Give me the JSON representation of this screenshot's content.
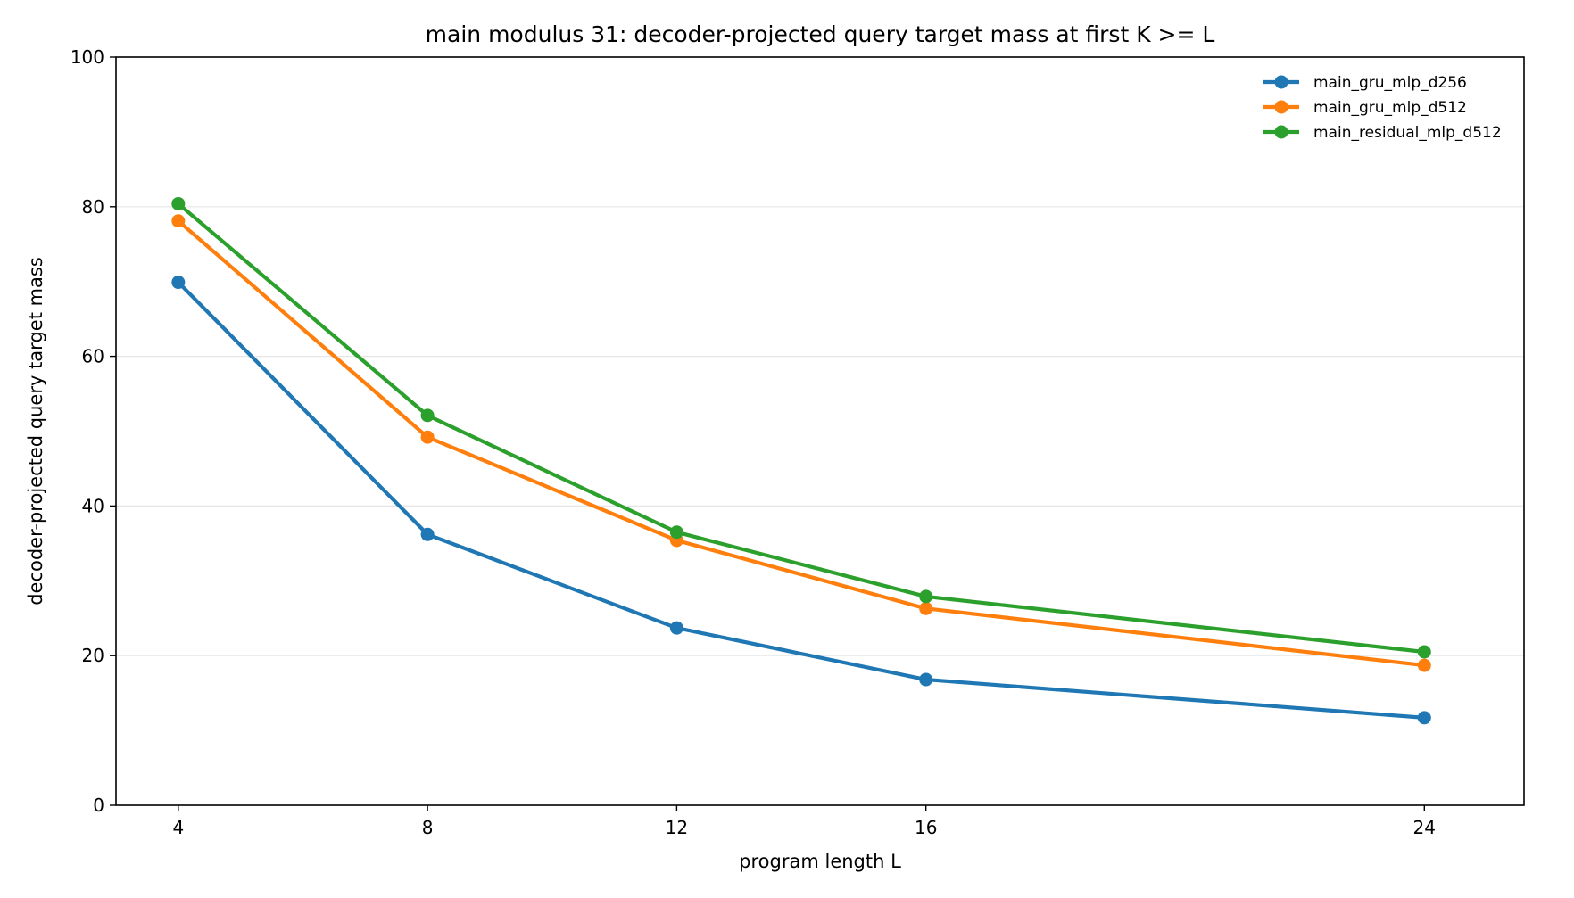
{
  "chart_data": {
    "type": "line",
    "title": "main modulus 31: decoder-projected query target mass at first K >= L",
    "xlabel": "program length L",
    "ylabel": "decoder-projected query target mass",
    "x": [
      4,
      8,
      12,
      16,
      24
    ],
    "x_ticks": [
      "4",
      "8",
      "12",
      "16",
      "24"
    ],
    "y_ticks": [
      "0",
      "20",
      "40",
      "60",
      "80",
      "100"
    ],
    "xlim": [
      3,
      25.6
    ],
    "ylim": [
      0,
      100
    ],
    "grid": "horizontal",
    "legend_position": "top-right",
    "series": [
      {
        "name": "main_gru_mlp_d256",
        "color": "#1f77b4",
        "values": [
          69.9,
          36.2,
          23.7,
          16.8,
          11.7
        ]
      },
      {
        "name": "main_gru_mlp_d512",
        "color": "#ff7f0e",
        "values": [
          78.1,
          49.2,
          35.4,
          26.3,
          18.7
        ]
      },
      {
        "name": "main_residual_mlp_d512",
        "color": "#2ca02c",
        "values": [
          80.4,
          52.1,
          36.5,
          27.9,
          20.5
        ]
      }
    ]
  }
}
